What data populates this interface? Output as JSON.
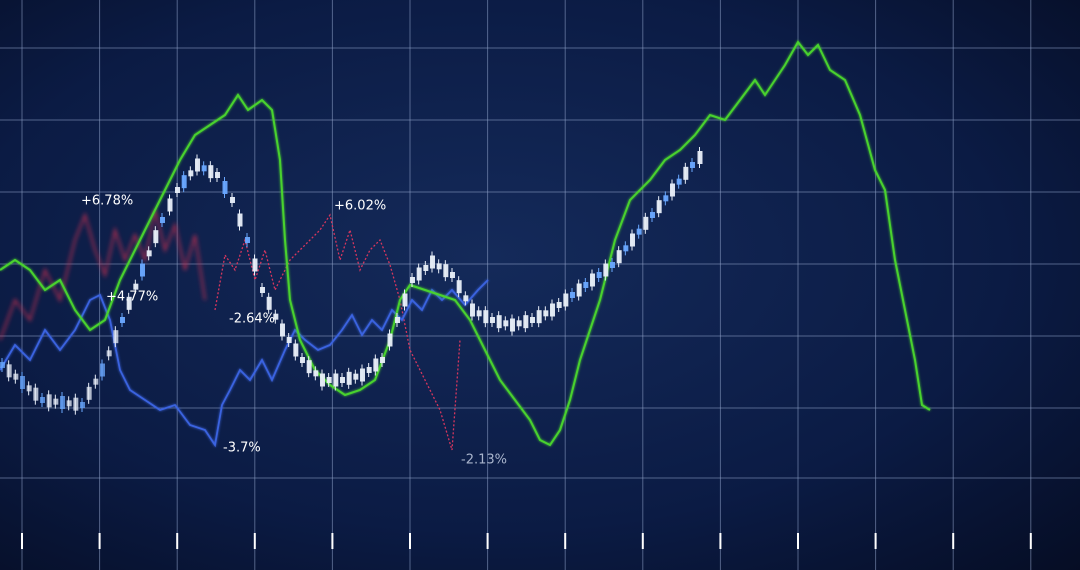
{
  "annotations": [
    "+6.78%",
    "+4.77%",
    "-2.64%",
    "+6.02%",
    "-3.7%",
    "-2.13%"
  ]
}
